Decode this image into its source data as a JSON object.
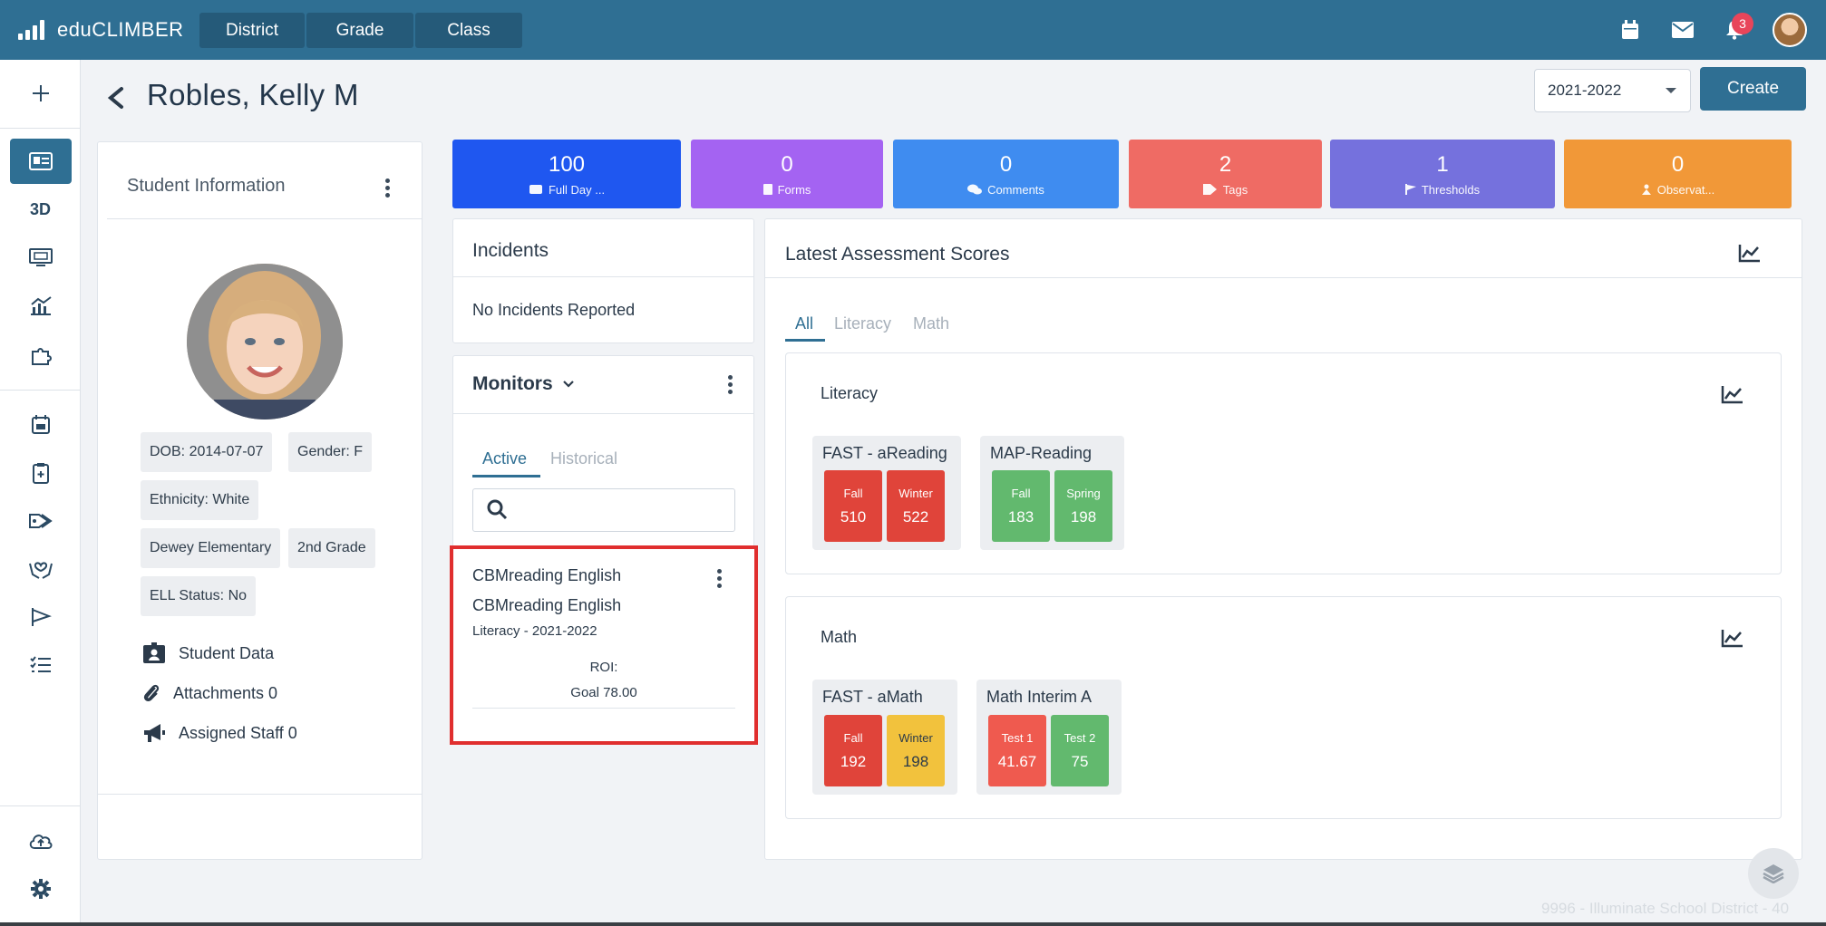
{
  "app": {
    "name": "eduCLIMBER"
  },
  "nav": {
    "tabs": [
      "District",
      "Grade",
      "Class"
    ]
  },
  "header": {
    "notifications_count": "3"
  },
  "sidebar": {
    "label_3d": "3D"
  },
  "student": {
    "name": "Robles, Kelly M",
    "info_title": "Student Information",
    "chips": [
      "DOB: 2014-07-07",
      "Gender: F",
      "Ethnicity: White",
      "Dewey Elementary",
      "2nd Grade",
      "ELL Status: No"
    ],
    "links": [
      "Student Data",
      "Attachments 0",
      "Assigned Staff 0"
    ]
  },
  "year_select": {
    "value": "2021-2022"
  },
  "create_button": "Create",
  "tiles": [
    {
      "value": "100",
      "label": "Full Day ...",
      "color": "#1f57f0"
    },
    {
      "value": "0",
      "label": "Forms",
      "color": "#a463f2"
    },
    {
      "value": "0",
      "label": "Comments",
      "color": "#3f8cf0"
    },
    {
      "value": "2",
      "label": "Tags",
      "color": "#ef6b64"
    },
    {
      "value": "1",
      "label": "Thresholds",
      "color": "#7571dd"
    },
    {
      "value": "0",
      "label": "Observat...",
      "color": "#f19838"
    }
  ],
  "incidents": {
    "title": "Incidents",
    "empty_text": "No Incidents Reported"
  },
  "monitors": {
    "title": "Monitors",
    "tabs": [
      "Active",
      "Historical"
    ],
    "item": {
      "title": "CBMreading English",
      "subtitle": "CBMreading English",
      "meta": "Literacy - 2021-2022",
      "roi": "ROI:",
      "goal": "Goal 78.00"
    }
  },
  "assessment": {
    "title": "Latest Assessment Scores",
    "tabs": [
      "All",
      "Literacy",
      "Math"
    ],
    "groups": [
      {
        "name": "Literacy",
        "tests": [
          {
            "name": "FAST - aReading",
            "scores": [
              {
                "label": "Fall",
                "value": "510",
                "color": "#e0443a"
              },
              {
                "label": "Winter",
                "value": "522",
                "color": "#e0443a"
              }
            ]
          },
          {
            "name": "MAP-Reading",
            "scores": [
              {
                "label": "Fall",
                "value": "183",
                "color": "#62b96e"
              },
              {
                "label": "Spring",
                "value": "198",
                "color": "#62b96e"
              }
            ]
          }
        ]
      },
      {
        "name": "Math",
        "tests": [
          {
            "name": "FAST - aMath",
            "scores": [
              {
                "label": "Fall",
                "value": "192",
                "color": "#e0443a"
              },
              {
                "label": "Winter",
                "value": "198",
                "color": "#f2c23d"
              }
            ]
          },
          {
            "name": "Math Interim A",
            "scores": [
              {
                "label": "Test 1",
                "value": "41.67",
                "color": "#ef5a4f"
              },
              {
                "label": "Test 2",
                "value": "75",
                "color": "#62b96e"
              }
            ]
          }
        ]
      }
    ]
  },
  "footer": {
    "text": "9996 - Illuminate School District - 40"
  }
}
